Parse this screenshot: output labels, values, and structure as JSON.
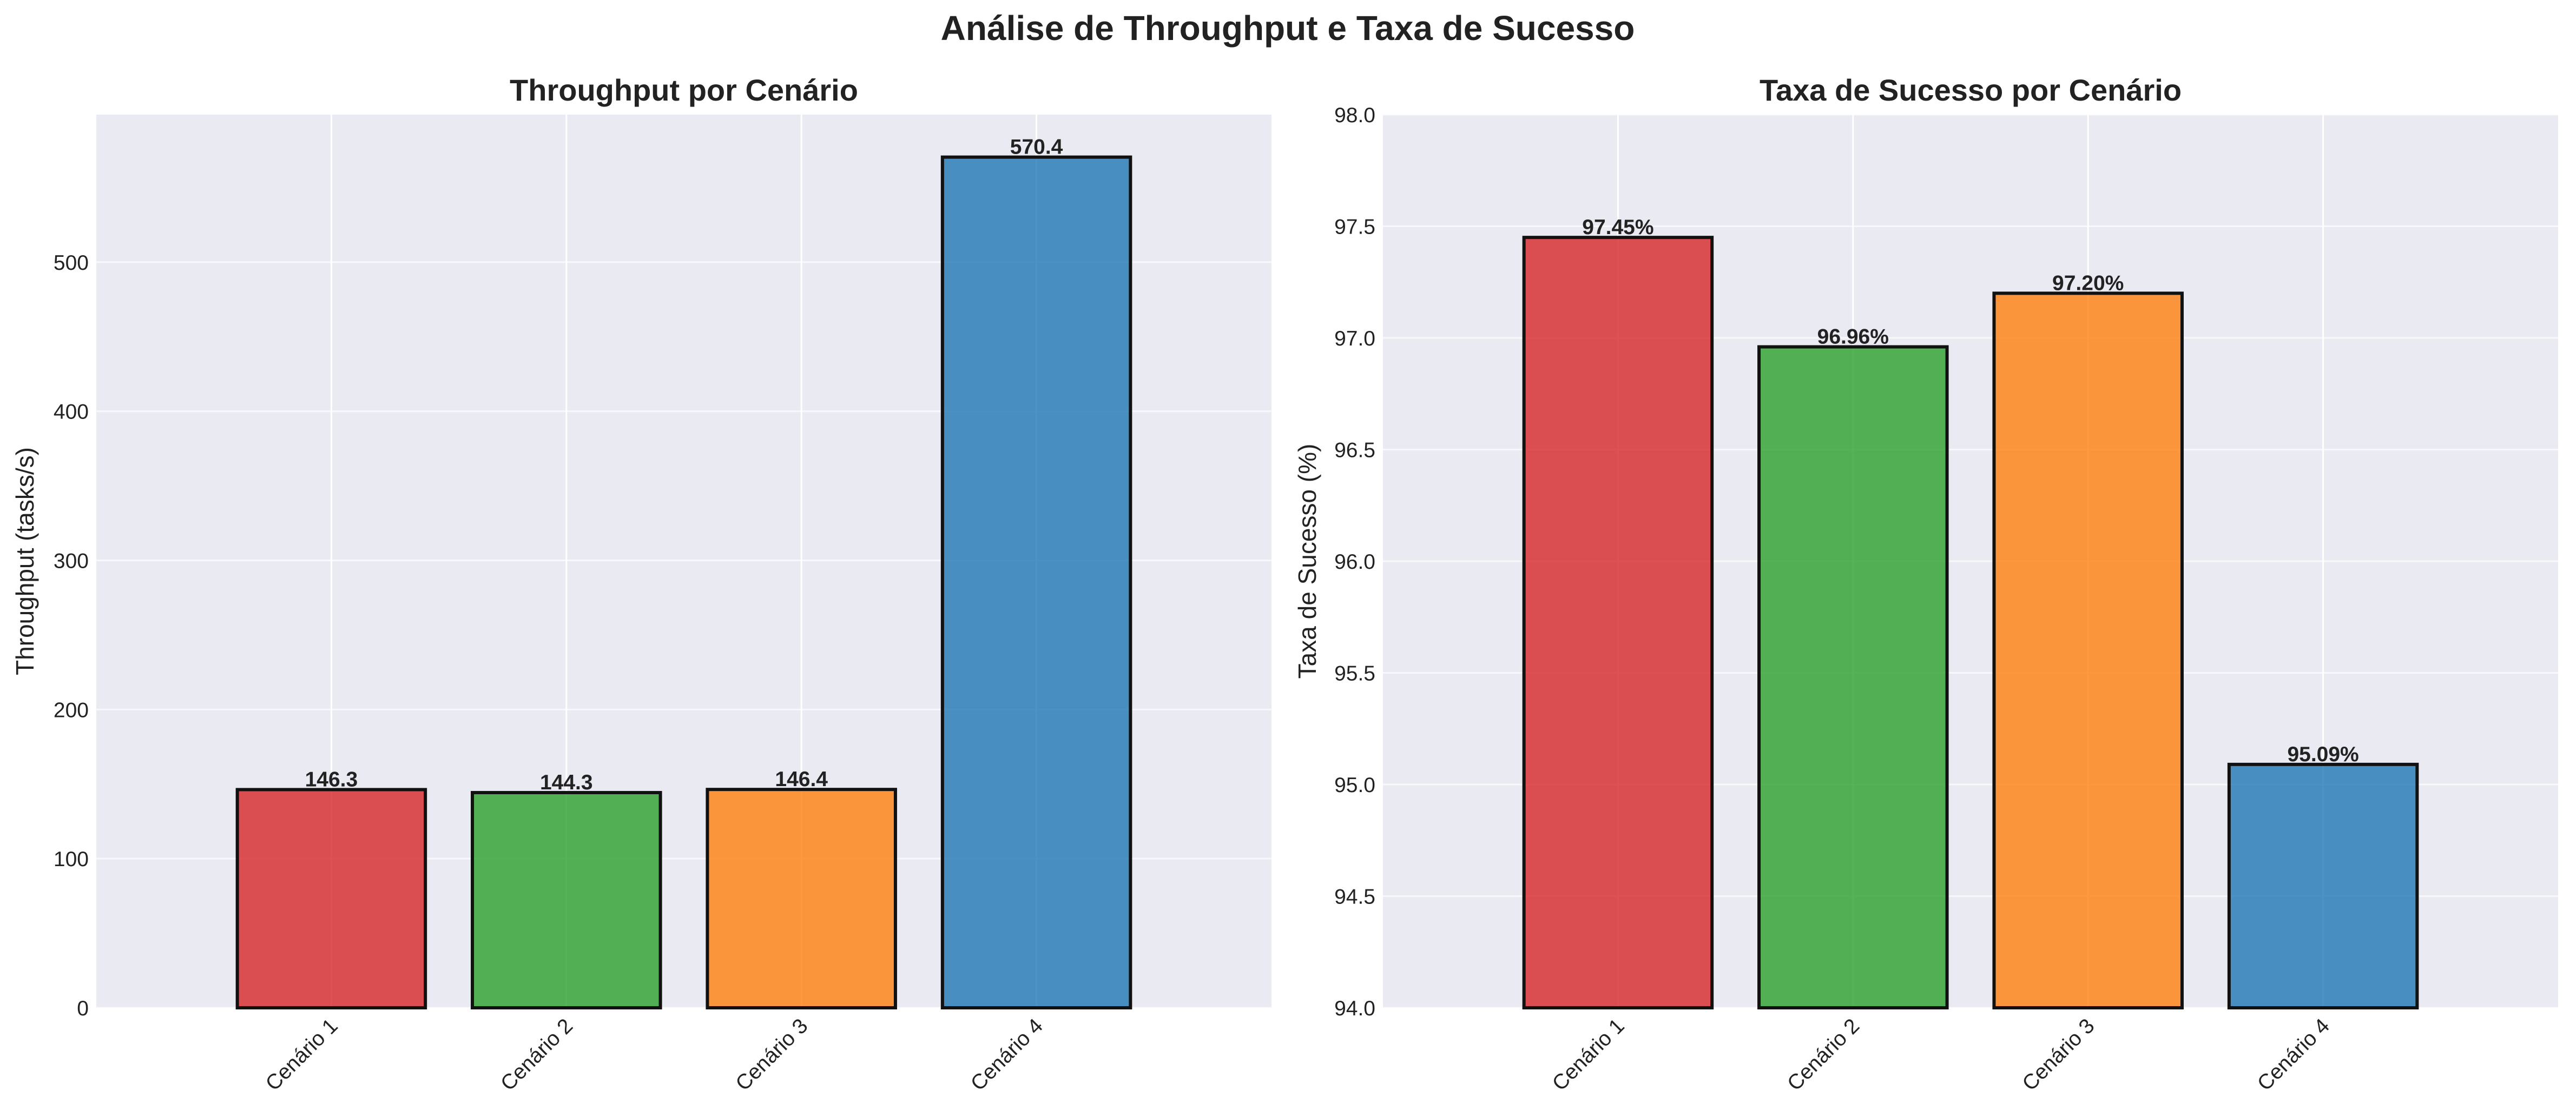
{
  "figure_title": "Análise de Throughput e Taxa de Sucesso",
  "chart_data": [
    {
      "type": "bar",
      "title": "Throughput por Cenário",
      "xlabel": "",
      "ylabel": "Throughput (tasks/s)",
      "categories": [
        "Cenário 1",
        "Cenário 2",
        "Cenário 3",
        "Cenário 4"
      ],
      "values": [
        146.3,
        144.3,
        146.4,
        570.4
      ],
      "value_labels": [
        "146.3",
        "144.3",
        "146.4",
        "570.4"
      ],
      "ylim": [
        0,
        598.9
      ],
      "yticks": [
        0,
        100,
        200,
        300,
        400,
        500
      ],
      "ytick_labels": [
        "0",
        "100",
        "200",
        "300",
        "400",
        "500"
      ],
      "colors": [
        "#d62728",
        "#2ca02c",
        "#ff7f0e",
        "#1f77b4"
      ],
      "grid": true
    },
    {
      "type": "bar",
      "title": "Taxa de Sucesso por Cenário",
      "xlabel": "",
      "ylabel": "Taxa de Sucesso (%)",
      "categories": [
        "Cenário 1",
        "Cenário 2",
        "Cenário 3",
        "Cenário 4"
      ],
      "values": [
        97.45,
        96.96,
        97.2,
        95.09
      ],
      "value_labels": [
        "97.45%",
        "96.96%",
        "97.20%",
        "95.09%"
      ],
      "ylim": [
        94.0,
        98.0
      ],
      "yticks": [
        94.0,
        94.5,
        95.0,
        95.5,
        96.0,
        96.5,
        97.0,
        97.5,
        98.0
      ],
      "ytick_labels": [
        "94.0",
        "94.5",
        "95.0",
        "95.5",
        "96.0",
        "96.5",
        "97.0",
        "97.5",
        "98.0"
      ],
      "colors": [
        "#d62728",
        "#2ca02c",
        "#ff7f0e",
        "#1f77b4"
      ],
      "grid": true
    }
  ]
}
